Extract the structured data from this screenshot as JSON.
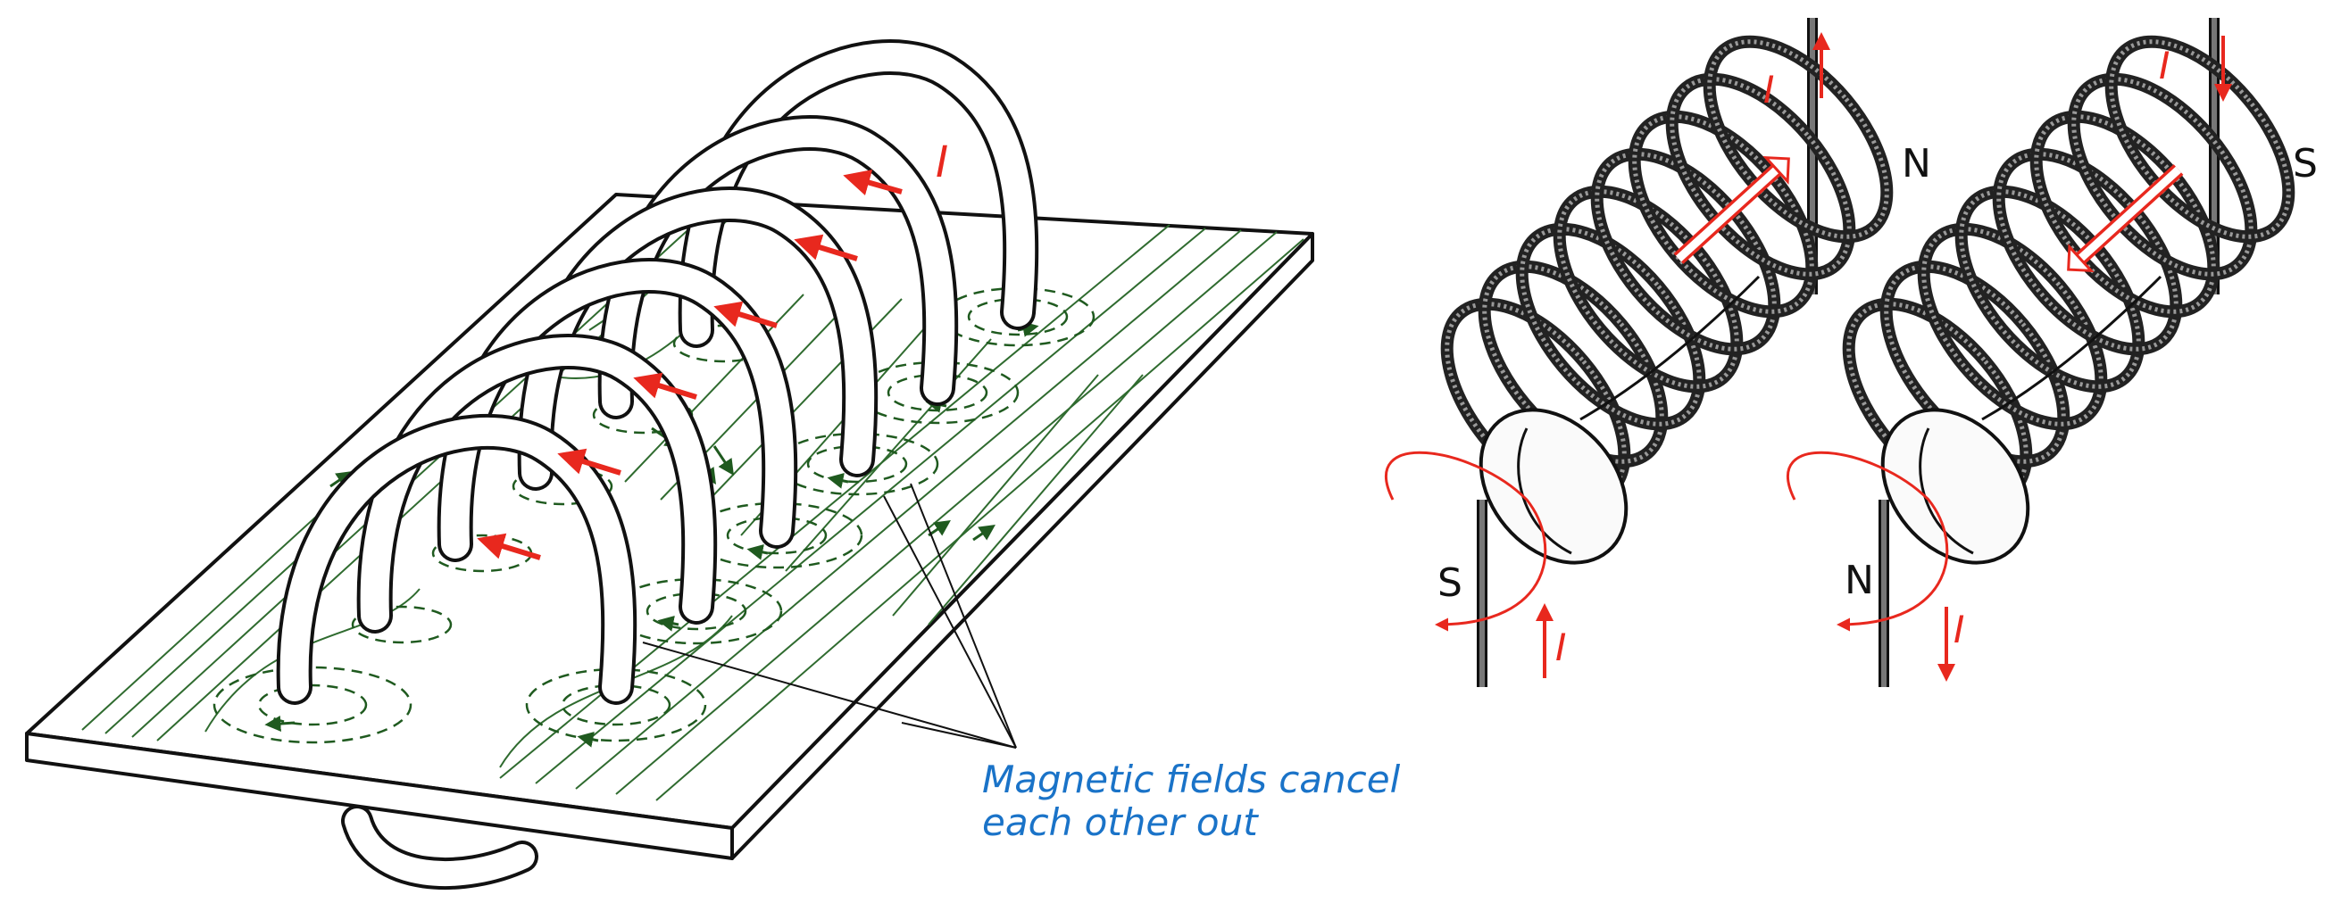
{
  "colors": {
    "current": "#e8281e",
    "field_line": "#2f6b2f",
    "field_arrow": "#1f5a1f",
    "caption": "#1a73c8",
    "ink": "#111111"
  },
  "left_figure": {
    "current_label": "I",
    "caption_line1": "Magnetic fields cancel",
    "caption_line2": "each other out"
  },
  "coil_north": {
    "current_top": "I",
    "current_bottom": "I",
    "pole_end": "N",
    "pole_start": "S"
  },
  "coil_south": {
    "current_top": "I",
    "current_bottom": "I",
    "pole_end": "S",
    "pole_start": "N"
  }
}
